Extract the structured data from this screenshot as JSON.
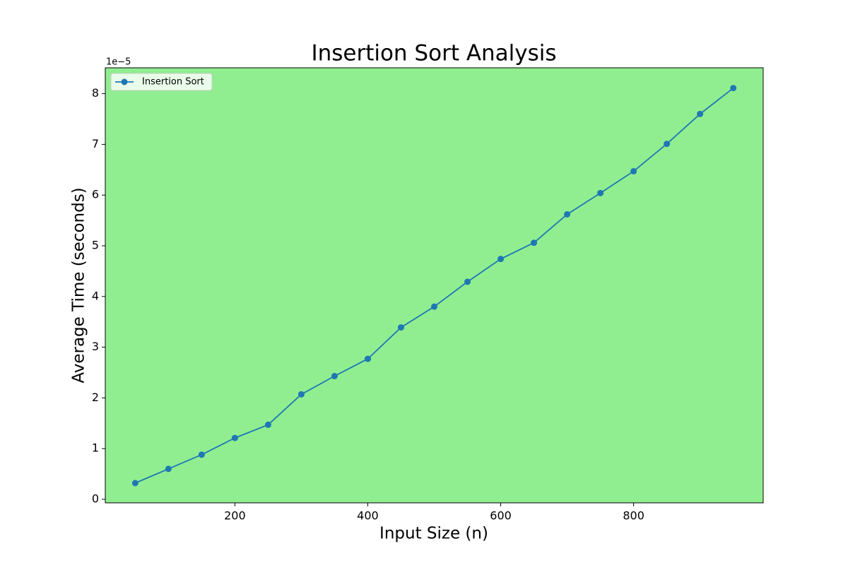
{
  "chart_data": {
    "type": "line",
    "title": "Insertion Sort Analysis",
    "x_label": "Input Size (n)",
    "y_label": "Average Time (seconds)",
    "y_offset_label": "1e−5",
    "x": [
      50,
      100,
      150,
      200,
      250,
      300,
      350,
      400,
      450,
      500,
      550,
      600,
      650,
      700,
      750,
      800,
      850,
      900,
      950
    ],
    "series": [
      {
        "name": "Insertion Sort",
        "color": "#1f77b4",
        "marker": "o",
        "values": [
          0.32,
          0.6,
          0.88,
          1.21,
          1.47,
          2.07,
          2.43,
          2.77,
          3.39,
          3.8,
          4.29,
          4.74,
          5.06,
          5.62,
          6.04,
          6.47,
          7.01,
          7.6,
          8.11
        ]
      }
    ],
    "xlim": [
      5,
      995
    ],
    "ylim": [
      -0.07,
      8.51
    ],
    "xticks": [
      200,
      400,
      600,
      800
    ],
    "yticks": [
      0,
      1,
      2,
      3,
      4,
      5,
      6,
      7,
      8
    ],
    "grid": false,
    "legend": "upper left",
    "background": "#90ee90"
  }
}
